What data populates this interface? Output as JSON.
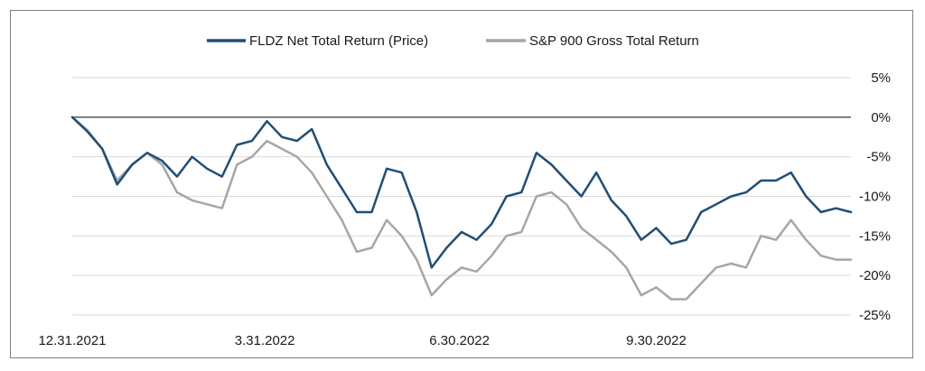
{
  "chart_data": {
    "type": "line",
    "legend_position": "top-center",
    "grid": "horizontal",
    "ylim": [
      -25,
      5
    ],
    "yticks": [
      5,
      0,
      -5,
      -10,
      -15,
      -20,
      -25
    ],
    "ytick_labels": [
      "5%",
      "0%",
      "-5%",
      "-10%",
      "-15%",
      "-20%",
      "-25%"
    ],
    "xtick_labels": [
      "12.31.2021",
      "3.31.2022",
      "6.30.2022",
      "9.30.2022"
    ],
    "x_start": "2021-12-31",
    "x_end": "2022-12-30",
    "dates": [
      "2021-12-31",
      "2022-01-07",
      "2022-01-14",
      "2022-01-21",
      "2022-01-28",
      "2022-02-04",
      "2022-02-11",
      "2022-02-18",
      "2022-02-25",
      "2022-03-04",
      "2022-03-11",
      "2022-03-18",
      "2022-03-25",
      "2022-04-01",
      "2022-04-08",
      "2022-04-15",
      "2022-04-22",
      "2022-04-29",
      "2022-05-06",
      "2022-05-13",
      "2022-05-20",
      "2022-05-27",
      "2022-06-03",
      "2022-06-10",
      "2022-06-17",
      "2022-06-24",
      "2022-07-01",
      "2022-07-08",
      "2022-07-15",
      "2022-07-22",
      "2022-07-29",
      "2022-08-05",
      "2022-08-12",
      "2022-08-19",
      "2022-08-26",
      "2022-09-02",
      "2022-09-09",
      "2022-09-16",
      "2022-09-23",
      "2022-09-30",
      "2022-10-07",
      "2022-10-14",
      "2022-10-21",
      "2022-10-28",
      "2022-11-04",
      "2022-11-11",
      "2022-11-18",
      "2022-11-25",
      "2022-12-02",
      "2022-12-09",
      "2022-12-16",
      "2022-12-23",
      "2022-12-30"
    ],
    "series": [
      {
        "name": "FLDZ Net Total Return (Price)",
        "color": "#1f4e79",
        "values": [
          0,
          -1.8,
          -4,
          -8.5,
          -6,
          -4.5,
          -5.5,
          -7.5,
          -5,
          -6.5,
          -7.5,
          -3.5,
          -3,
          -0.5,
          -2.5,
          -3,
          -1.5,
          -6,
          -9,
          -12,
          -12,
          -6.5,
          -7,
          -12,
          -19,
          -16.5,
          -14.5,
          -15.5,
          -13.5,
          -10,
          -9.5,
          -4.5,
          -6,
          -8,
          -10,
          -7,
          -10.5,
          -12.5,
          -15.5,
          -14,
          -16,
          -15.5,
          -12,
          -11,
          -10,
          -9.5,
          -8,
          -8,
          -7,
          -10,
          -12,
          -11.5,
          -12
        ]
      },
      {
        "name": "S&P 900 Gross Total Return",
        "color": "#a6a6a6",
        "values": [
          0,
          -1.6,
          -4,
          -8,
          -6,
          -4.5,
          -6,
          -9.5,
          -10.5,
          -11,
          -11.5,
          -6,
          -5,
          -3,
          -4,
          -5,
          -7,
          -10,
          -13,
          -17,
          -16.5,
          -13,
          -15,
          -18,
          -22.5,
          -20.5,
          -19,
          -19.5,
          -17.5,
          -15,
          -14.5,
          -10,
          -9.5,
          -11,
          -14,
          -15.5,
          -17,
          -19,
          -22.5,
          -21.5,
          -23,
          -23,
          -21,
          -19,
          -18.5,
          -19,
          -15,
          -15.5,
          -13,
          -15.5,
          -17.5,
          -18,
          -18
        ]
      }
    ]
  }
}
